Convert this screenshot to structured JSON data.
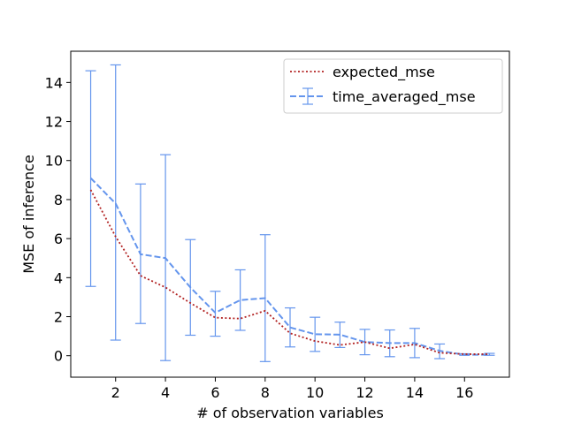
{
  "chart_data": {
    "type": "line",
    "xlabel": "# of observation variables",
    "ylabel": "MSE of inference",
    "xlim": [
      0.2,
      17.8
    ],
    "ylim": [
      -1.1,
      15.6
    ],
    "xticks": [
      2,
      4,
      6,
      8,
      10,
      12,
      14,
      16
    ],
    "yticks": [
      0,
      2,
      4,
      6,
      8,
      10,
      12,
      14
    ],
    "legend_position": "top-right",
    "x": [
      1,
      2,
      3,
      4,
      5,
      6,
      7,
      8,
      9,
      10,
      11,
      12,
      13,
      14,
      15,
      16,
      17
    ],
    "series": [
      {
        "name": "expected_mse",
        "style": "dotted",
        "color": "#b22222",
        "values": [
          8.5,
          6.1,
          4.1,
          3.5,
          2.7,
          1.95,
          1.9,
          2.3,
          1.15,
          0.75,
          0.55,
          0.7,
          0.38,
          0.58,
          0.15,
          0.08,
          0.08
        ]
      },
      {
        "name": "time_averaged_mse",
        "style": "dashed",
        "color": "#6495ed",
        "values": [
          9.1,
          7.8,
          5.2,
          5.0,
          3.5,
          2.2,
          2.85,
          2.95,
          1.45,
          1.1,
          1.08,
          0.7,
          0.65,
          0.65,
          0.25,
          0.05,
          0.05
        ],
        "error_lower": [
          3.55,
          0.8,
          1.65,
          -0.25,
          1.05,
          1.0,
          1.3,
          -0.3,
          0.45,
          0.22,
          0.42,
          0.05,
          -0.05,
          -0.1,
          -0.15,
          0.02,
          0.02
        ],
        "error_upper": [
          14.6,
          14.9,
          8.8,
          10.3,
          5.95,
          3.3,
          4.4,
          6.2,
          2.45,
          1.97,
          1.72,
          1.35,
          1.32,
          1.4,
          0.6,
          0.1,
          0.12
        ]
      }
    ]
  }
}
